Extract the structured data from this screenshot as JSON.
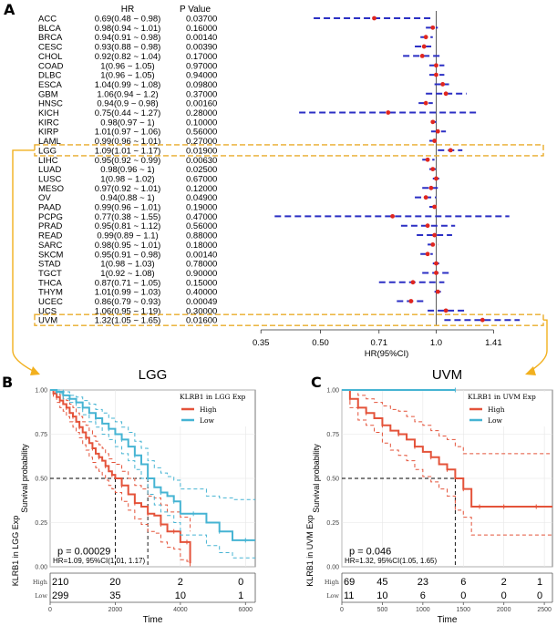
{
  "chart_data": [
    {
      "type": "forest",
      "panel": "A",
      "column_headers": [
        "HR",
        "P Value"
      ],
      "xlabel": "HR(95%CI)",
      "x_scale": "log",
      "xlim": [
        0.3,
        1.9
      ],
      "xticks": [
        0.35,
        0.5,
        0.71,
        1.0,
        1.41
      ],
      "xtick_labels": [
        "0.35",
        "0.50",
        "0.71",
        "1.0",
        "1.41"
      ],
      "reference_line": 1.0,
      "highlighted": [
        "LGG",
        "UVM"
      ],
      "rows": [
        {
          "cancer": "ACC",
          "hr_text": "0.69(0.48 ~ 0.98)",
          "p": "0.03700",
          "hr": 0.69,
          "lo": 0.48,
          "hi": 0.98
        },
        {
          "cancer": "BLCA",
          "hr_text": "0.98(0.94 ~ 1.01)",
          "p": "0.16000",
          "hr": 0.98,
          "lo": 0.94,
          "hi": 1.01
        },
        {
          "cancer": "BRCA",
          "hr_text": "0.94(0.91 ~ 0.98)",
          "p": "0.00140",
          "hr": 0.94,
          "lo": 0.91,
          "hi": 0.98
        },
        {
          "cancer": "CESC",
          "hr_text": "0.93(0.88 ~ 0.98)",
          "p": "0.00390",
          "hr": 0.93,
          "lo": 0.88,
          "hi": 0.98
        },
        {
          "cancer": "CHOL",
          "hr_text": "0.92(0.82 ~ 1.04)",
          "p": "0.17000",
          "hr": 0.92,
          "lo": 0.82,
          "hi": 1.04
        },
        {
          "cancer": "COAD",
          "hr_text": "1(0.96 ~ 1.05)",
          "p": "0.97000",
          "hr": 1.0,
          "lo": 0.96,
          "hi": 1.05
        },
        {
          "cancer": "DLBC",
          "hr_text": "1(0.96 ~ 1.05)",
          "p": "0.94000",
          "hr": 1.0,
          "lo": 0.96,
          "hi": 1.05
        },
        {
          "cancer": "ESCA",
          "hr_text": "1.04(0.99 ~ 1.08)",
          "p": "0.09800",
          "hr": 1.04,
          "lo": 0.99,
          "hi": 1.08
        },
        {
          "cancer": "GBM",
          "hr_text": "1.06(0.94 ~ 1.2)",
          "p": "0.37000",
          "hr": 1.06,
          "lo": 0.94,
          "hi": 1.2
        },
        {
          "cancer": "HNSC",
          "hr_text": "0.94(0.9 ~ 0.98)",
          "p": "0.00160",
          "hr": 0.94,
          "lo": 0.9,
          "hi": 0.98
        },
        {
          "cancer": "KICH",
          "hr_text": "0.75(0.44 ~ 1.27)",
          "p": "0.28000",
          "hr": 0.75,
          "lo": 0.44,
          "hi": 1.27
        },
        {
          "cancer": "KIRC",
          "hr_text": "0.98(0.97 ~ 1)",
          "p": "0.10000",
          "hr": 0.98,
          "lo": 0.97,
          "hi": 1.0
        },
        {
          "cancer": "KIRP",
          "hr_text": "1.01(0.97 ~ 1.06)",
          "p": "0.56000",
          "hr": 1.01,
          "lo": 0.97,
          "hi": 1.06
        },
        {
          "cancer": "LAML",
          "hr_text": "0.99(0.96 ~ 1.01)",
          "p": "0.27000",
          "hr": 0.99,
          "lo": 0.96,
          "hi": 1.01
        },
        {
          "cancer": "LGG",
          "hr_text": "1.09(1.01 ~ 1.17)",
          "p": "0.01900",
          "hr": 1.09,
          "lo": 1.01,
          "hi": 1.17
        },
        {
          "cancer": "LIHC",
          "hr_text": "0.95(0.92 ~ 0.99)",
          "p": "0.00630",
          "hr": 0.95,
          "lo": 0.92,
          "hi": 0.99
        },
        {
          "cancer": "LUAD",
          "hr_text": "0.98(0.96 ~ 1)",
          "p": "0.02500",
          "hr": 0.98,
          "lo": 0.96,
          "hi": 1.0
        },
        {
          "cancer": "LUSC",
          "hr_text": "1(0.98 ~ 1.02)",
          "p": "0.67000",
          "hr": 1.0,
          "lo": 0.98,
          "hi": 1.02
        },
        {
          "cancer": "MESO",
          "hr_text": "0.97(0.92 ~ 1.01)",
          "p": "0.12000",
          "hr": 0.97,
          "lo": 0.92,
          "hi": 1.01
        },
        {
          "cancer": "OV",
          "hr_text": "0.94(0.88 ~ 1)",
          "p": "0.04900",
          "hr": 0.94,
          "lo": 0.88,
          "hi": 1.0
        },
        {
          "cancer": "PAAD",
          "hr_text": "0.99(0.96 ~ 1.01)",
          "p": "0.19000",
          "hr": 0.99,
          "lo": 0.96,
          "hi": 1.01
        },
        {
          "cancer": "PCPG",
          "hr_text": "0.77(0.38 ~ 1.55)",
          "p": "0.47000",
          "hr": 0.77,
          "lo": 0.38,
          "hi": 1.55
        },
        {
          "cancer": "PRAD",
          "hr_text": "0.95(0.81 ~ 1.12)",
          "p": "0.56000",
          "hr": 0.95,
          "lo": 0.81,
          "hi": 1.12
        },
        {
          "cancer": "READ",
          "hr_text": "0.99(0.89 ~ 1.1)",
          "p": "0.88000",
          "hr": 0.99,
          "lo": 0.89,
          "hi": 1.1
        },
        {
          "cancer": "SARC",
          "hr_text": "0.98(0.95 ~ 1.01)",
          "p": "0.18000",
          "hr": 0.98,
          "lo": 0.95,
          "hi": 1.01
        },
        {
          "cancer": "SKCM",
          "hr_text": "0.95(0.91 ~ 0.98)",
          "p": "0.00140",
          "hr": 0.95,
          "lo": 0.91,
          "hi": 0.98
        },
        {
          "cancer": "STAD",
          "hr_text": "1(0.98 ~ 1.03)",
          "p": "0.78000",
          "hr": 1.0,
          "lo": 0.98,
          "hi": 1.03
        },
        {
          "cancer": "TGCT",
          "hr_text": "1(0.92 ~ 1.08)",
          "p": "0.90000",
          "hr": 1.0,
          "lo": 0.92,
          "hi": 1.08
        },
        {
          "cancer": "THCA",
          "hr_text": "0.87(0.71 ~ 1.05)",
          "p": "0.15000",
          "hr": 0.87,
          "lo": 0.71,
          "hi": 1.05
        },
        {
          "cancer": "THYM",
          "hr_text": "1.01(0.99 ~ 1.03)",
          "p": "0.40000",
          "hr": 1.01,
          "lo": 0.99,
          "hi": 1.03
        },
        {
          "cancer": "UCEC",
          "hr_text": "0.86(0.79 ~ 0.93)",
          "p": "0.00049",
          "hr": 0.86,
          "lo": 0.79,
          "hi": 0.93
        },
        {
          "cancer": "UCS",
          "hr_text": "1.06(0.95 ~ 1.19)",
          "p": "0.30000",
          "hr": 1.06,
          "lo": 0.95,
          "hi": 1.19
        },
        {
          "cancer": "UVM",
          "hr_text": "1.32(1.05 ~ 1.65)",
          "p": "0.01600",
          "hr": 1.32,
          "lo": 1.05,
          "hi": 1.65
        }
      ]
    },
    {
      "type": "kaplan-meier",
      "panel": "B",
      "title": "LGG",
      "legend_title": "KLRB1 in LGG Exp",
      "legend": [
        "High",
        "Low"
      ],
      "ylabel": "Survival probability",
      "xlabel": "Time",
      "xlim": [
        0,
        6300
      ],
      "ylim": [
        0,
        1
      ],
      "xticks": [
        0,
        2000,
        4000,
        6000
      ],
      "yticks": [
        "0.00",
        "0.25",
        "0.50",
        "0.75",
        "1.00"
      ],
      "pvalue_text": "p = 0.00029",
      "hr_text": "HR=1.09, 95%CI(1.01, 1.17)",
      "median": {
        "High": 2000,
        "Low": 3000
      },
      "series": [
        {
          "name": "High",
          "color": "#e4533a",
          "time": [
            0,
            100,
            200,
            300,
            400,
            500,
            600,
            700,
            800,
            900,
            1000,
            1100,
            1200,
            1300,
            1400,
            1500,
            1600,
            1700,
            1800,
            1900,
            2000,
            2200,
            2400,
            2600,
            2800,
            3000,
            3200,
            3400,
            3600,
            3800,
            4000,
            4200,
            4300
          ],
          "survival": [
            1.0,
            0.98,
            0.96,
            0.94,
            0.92,
            0.9,
            0.87,
            0.85,
            0.82,
            0.79,
            0.76,
            0.73,
            0.7,
            0.67,
            0.64,
            0.62,
            0.6,
            0.57,
            0.54,
            0.52,
            0.5,
            0.46,
            0.41,
            0.36,
            0.34,
            0.3,
            0.29,
            0.24,
            0.2,
            0.2,
            0.14,
            0.14,
            0.02
          ],
          "ci_upper": [
            1.0,
            0.99,
            0.98,
            0.97,
            0.95,
            0.94,
            0.92,
            0.9,
            0.87,
            0.85,
            0.82,
            0.8,
            0.77,
            0.74,
            0.71,
            0.69,
            0.67,
            0.64,
            0.61,
            0.59,
            0.58,
            0.54,
            0.5,
            0.46,
            0.44,
            0.4,
            0.39,
            0.35,
            0.31,
            0.31,
            0.28,
            0.28,
            0.2
          ],
          "ci_lower": [
            1.0,
            0.96,
            0.93,
            0.9,
            0.88,
            0.85,
            0.82,
            0.79,
            0.76,
            0.73,
            0.69,
            0.66,
            0.62,
            0.59,
            0.56,
            0.54,
            0.52,
            0.49,
            0.46,
            0.44,
            0.42,
            0.37,
            0.32,
            0.27,
            0.24,
            0.2,
            0.19,
            0.14,
            0.11,
            0.1,
            0.04,
            0.03,
            0.0
          ]
        },
        {
          "name": "Low",
          "color": "#46b4d3",
          "time": [
            0,
            200,
            400,
            600,
            800,
            1000,
            1200,
            1400,
            1600,
            1800,
            2000,
            2200,
            2400,
            2600,
            2800,
            3000,
            3200,
            3400,
            3600,
            3800,
            4000,
            4400,
            4800,
            5200,
            5600,
            6000,
            6300
          ],
          "survival": [
            1.0,
            0.99,
            0.97,
            0.95,
            0.93,
            0.9,
            0.87,
            0.84,
            0.81,
            0.78,
            0.75,
            0.72,
            0.68,
            0.63,
            0.58,
            0.5,
            0.45,
            0.42,
            0.4,
            0.37,
            0.3,
            0.3,
            0.25,
            0.2,
            0.15,
            0.15,
            0.15
          ],
          "ci_upper": [
            1.0,
            1.0,
            0.99,
            0.97,
            0.96,
            0.94,
            0.92,
            0.89,
            0.87,
            0.84,
            0.82,
            0.79,
            0.76,
            0.71,
            0.67,
            0.6,
            0.56,
            0.53,
            0.51,
            0.49,
            0.44,
            0.44,
            0.4,
            0.39,
            0.38,
            0.38,
            0.38
          ],
          "ci_lower": [
            1.0,
            0.98,
            0.95,
            0.93,
            0.9,
            0.86,
            0.82,
            0.79,
            0.75,
            0.72,
            0.68,
            0.64,
            0.6,
            0.55,
            0.5,
            0.41,
            0.35,
            0.31,
            0.29,
            0.25,
            0.18,
            0.18,
            0.12,
            0.08,
            0.05,
            0.05,
            0.05
          ]
        }
      ],
      "risk_table": {
        "ylabel": "KLRB1 in LGG Exp",
        "groups": [
          "High",
          "Low"
        ],
        "High": [
          "210",
          "20",
          "2",
          "0"
        ],
        "Low": [
          "299",
          "35",
          "10",
          "1"
        ]
      }
    },
    {
      "type": "kaplan-meier",
      "panel": "C",
      "title": "UVM",
      "legend_title": "KLRB1 in UVM Exp",
      "legend": [
        "High",
        "Low"
      ],
      "ylabel": "Survival probability",
      "xlabel": "Time",
      "xlim": [
        0,
        2600
      ],
      "ylim": [
        0,
        1
      ],
      "xticks": [
        0,
        500,
        1000,
        1500,
        2000,
        2500
      ],
      "yticks": [
        "0.00",
        "0.25",
        "0.50",
        "0.75",
        "1.00"
      ],
      "pvalue_text": "p = 0.046",
      "hr_text": "HR=1.32, 95%CI(1.05, 1.65)",
      "median": {
        "High": 1400
      },
      "series": [
        {
          "name": "High",
          "color": "#e4533a",
          "time": [
            0,
            100,
            200,
            300,
            400,
            500,
            600,
            700,
            800,
            900,
            1000,
            1100,
            1200,
            1300,
            1400,
            1500,
            1600,
            1700,
            1800,
            2000,
            2200,
            2400,
            2600
          ],
          "survival": [
            1.0,
            0.95,
            0.9,
            0.87,
            0.84,
            0.8,
            0.77,
            0.75,
            0.72,
            0.68,
            0.65,
            0.62,
            0.58,
            0.55,
            0.5,
            0.44,
            0.34,
            0.34,
            0.34,
            0.34,
            0.34,
            0.34,
            0.34
          ],
          "ci_upper": [
            1.0,
            1.0,
            0.97,
            0.95,
            0.93,
            0.91,
            0.89,
            0.88,
            0.85,
            0.82,
            0.8,
            0.77,
            0.74,
            0.72,
            0.68,
            0.64,
            0.64,
            0.64,
            0.64,
            0.64,
            0.64,
            0.64,
            0.64
          ],
          "ci_lower": [
            1.0,
            0.9,
            0.83,
            0.8,
            0.76,
            0.7,
            0.66,
            0.63,
            0.6,
            0.55,
            0.51,
            0.48,
            0.44,
            0.4,
            0.32,
            0.28,
            0.18,
            0.18,
            0.18,
            0.18,
            0.18,
            0.18,
            0.18
          ]
        },
        {
          "name": "Low",
          "color": "#46b4d3",
          "time": [
            0,
            1400
          ],
          "survival": [
            1.0,
            1.0
          ]
        }
      ],
      "risk_table": {
        "ylabel": "KLRB1 in UVM Exp",
        "groups": [
          "High",
          "Low"
        ],
        "High": [
          "69",
          "45",
          "23",
          "6",
          "2",
          "1"
        ],
        "Low": [
          "11",
          "10",
          "6",
          "0",
          "0",
          "0"
        ]
      }
    }
  ],
  "labels": {
    "panel_a": "A",
    "panel_b": "B",
    "panel_c": "C"
  },
  "colors": {
    "high": "#e4533a",
    "low": "#46b4d3",
    "ci_line": "#2b2fc4",
    "point": "#e0261f",
    "highlight_box": "#e9ac2a",
    "arrow": "#f2b01e"
  }
}
